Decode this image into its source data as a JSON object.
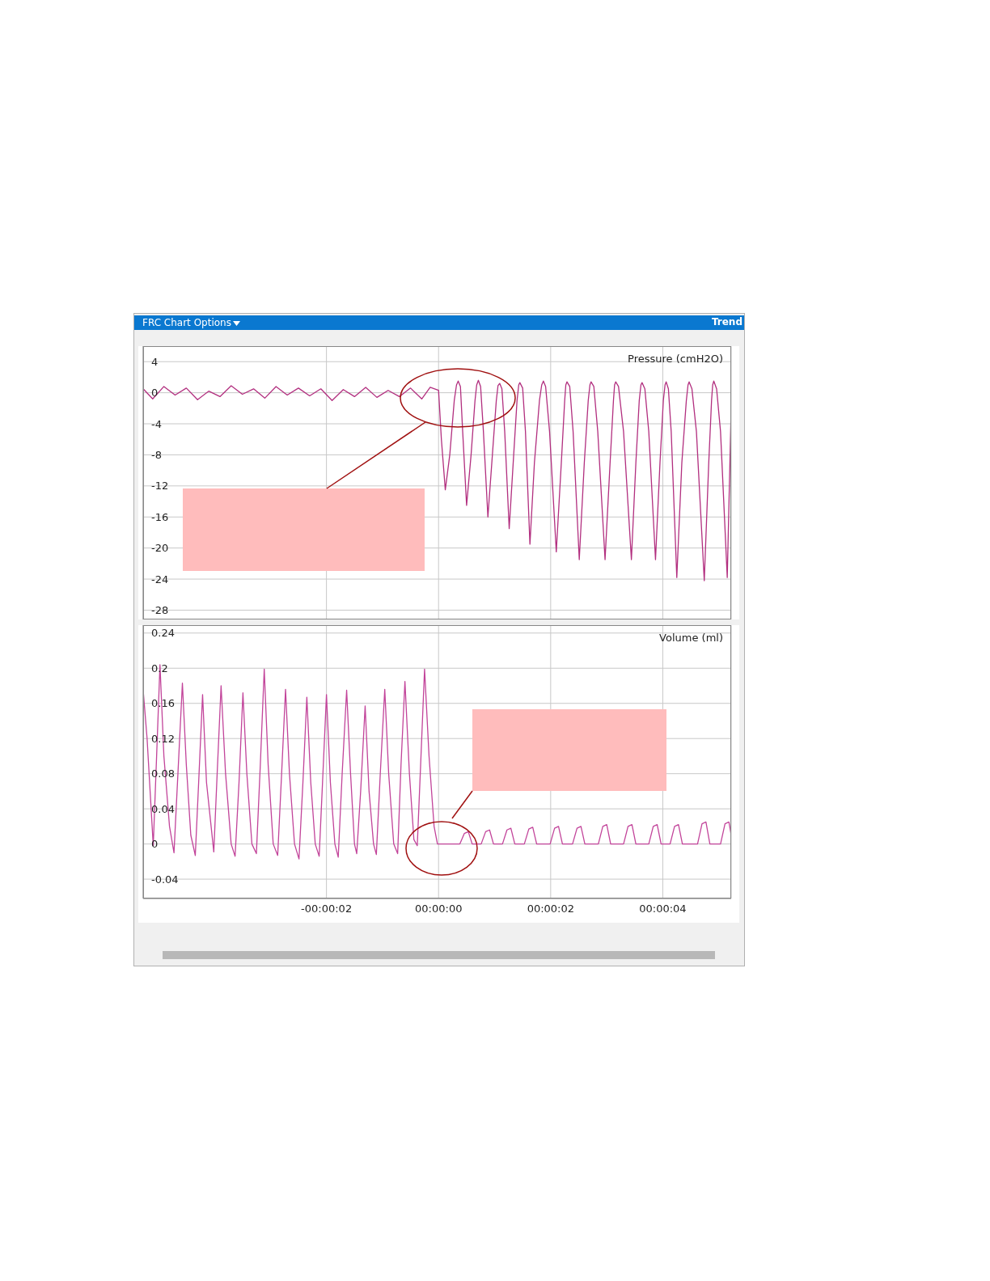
{
  "chart_data": [
    {
      "type": "line",
      "ylabel": "Pressure (cmH2O)",
      "annotations": [
        "FRC Chart Options",
        "Trend"
      ],
      "color": "#b22f7f",
      "grid": true,
      "tick_labels": "y",
      "xlim": [
        -5.27,
        5.22
      ],
      "xticks": [
        {
          "value": -2,
          "label": null
        },
        {
          "value": 0,
          "label": null
        },
        {
          "value": 2,
          "label": null
        },
        {
          "value": 4,
          "label": null
        }
      ],
      "ylim": [
        -29.2,
        6
      ],
      "yticks": [
        4,
        0,
        -4,
        -8,
        -12,
        -16,
        -20,
        -24,
        -28
      ],
      "x": [
        -5.27,
        -5.1,
        -4.9,
        -4.7,
        -4.5,
        -4.3,
        -4.1,
        -3.9,
        -3.7,
        -3.5,
        -3.3,
        -3.1,
        -2.9,
        -2.7,
        -2.5,
        -2.3,
        -2.1,
        -1.9,
        -1.7,
        -1.5,
        -1.3,
        -1.1,
        -0.9,
        -0.7,
        -0.5,
        -0.3,
        -0.15,
        0,
        0.05,
        0.12,
        0.2,
        0.28,
        0.32,
        0.35,
        0.39,
        0.43,
        0.5,
        0.58,
        0.65,
        0.68,
        0.71,
        0.75,
        0.8,
        0.88,
        0.96,
        1.03,
        1.06,
        1.09,
        1.13,
        1.18,
        1.26,
        1.34,
        1.4,
        1.43,
        1.45,
        1.5,
        1.55,
        1.63,
        1.71,
        1.8,
        1.84,
        1.87,
        1.91,
        1.98,
        2.1,
        2.19,
        2.25,
        2.27,
        2.29,
        2.34,
        2.4,
        2.51,
        2.6,
        2.67,
        2.7,
        2.72,
        2.77,
        2.84,
        2.97,
        3.06,
        3.12,
        3.14,
        3.16,
        3.21,
        3.3,
        3.44,
        3.52,
        3.58,
        3.61,
        3.63,
        3.68,
        3.75,
        3.87,
        3.95,
        4.01,
        4.04,
        4.06,
        4.1,
        4.15,
        4.25,
        4.34,
        4.42,
        4.45,
        4.47,
        4.52,
        4.6,
        4.74,
        4.82,
        4.87,
        4.89,
        4.91,
        4.96,
        5.03,
        5.15,
        5.22
      ],
      "values": [
        0.5,
        -0.8,
        0.8,
        -0.3,
        0.6,
        -0.9,
        0.2,
        -0.5,
        0.9,
        -0.2,
        0.5,
        -0.7,
        0.8,
        -0.3,
        0.6,
        -0.4,
        0.5,
        -1,
        0.4,
        -0.5,
        0.7,
        -0.6,
        0.3,
        -0.5,
        0.6,
        -0.8,
        0.7,
        0.3,
        -6,
        -12.5,
        -8,
        -1,
        1,
        1.5,
        0.8,
        -5,
        -14.5,
        -8,
        -1,
        1,
        1.6,
        0.8,
        -5,
        -16,
        -8,
        -1,
        0.9,
        1.2,
        0.5,
        -5,
        -17.5,
        -8,
        -1,
        1,
        1.3,
        0.6,
        -5,
        -19.5,
        -9,
        -1,
        1,
        1.5,
        0.8,
        -5,
        -20.5,
        -9,
        -1,
        1,
        1.4,
        0.8,
        -5,
        -21.5,
        -9,
        -1,
        1,
        1.4,
        0.8,
        -5,
        -21.5,
        -9,
        -1,
        1,
        1.4,
        0.8,
        -5,
        -21.5,
        -9,
        -1,
        1,
        1.3,
        0.5,
        -5,
        -21.5,
        -9,
        -1,
        1,
        1.4,
        0.5,
        -5,
        -23.8,
        -9,
        -1,
        1,
        1.4,
        0.5,
        -5,
        -24.2,
        -9,
        -1,
        1,
        1.5,
        0.5,
        -5,
        -23.8,
        -2
      ]
    },
    {
      "type": "line",
      "ylabel": "Volume (ml)",
      "color": "#c2449a",
      "grid": true,
      "xlim": [
        -5.27,
        5.22
      ],
      "xticks": [
        {
          "value": -2,
          "label": "-00:00:02"
        },
        {
          "value": 0,
          "label": "00:00:00"
        },
        {
          "value": 2,
          "label": "00:00:02"
        },
        {
          "value": 4,
          "label": "00:00:04"
        }
      ],
      "ylim": [
        -0.062,
        0.249
      ],
      "yticks": [
        0.24,
        0.2,
        0.16,
        0.12,
        0.08,
        0.04,
        0,
        -0.04
      ],
      "x": [
        -5.27,
        -5.2,
        -5.09,
        -5.03,
        -4.97,
        -4.9,
        -4.8,
        -4.72,
        -4.65,
        -4.57,
        -4.5,
        -4.42,
        -4.34,
        -4.28,
        -4.21,
        -4.14,
        -4.01,
        -3.95,
        -3.88,
        -3.8,
        -3.7,
        -3.63,
        -3.56,
        -3.49,
        -3.42,
        -3.33,
        -3.25,
        -3.18,
        -3.11,
        -3.04,
        -2.95,
        -2.87,
        -2.8,
        -2.73,
        -2.66,
        -2.57,
        -2.49,
        -2.42,
        -2.35,
        -2.28,
        -2.2,
        -2.13,
        -2.07,
        -2,
        -1.93,
        -1.85,
        -1.79,
        -1.72,
        -1.64,
        -1.57,
        -1.5,
        -1.46,
        -1.39,
        -1.31,
        -1.24,
        -1.16,
        -1.11,
        -1.04,
        -0.96,
        -0.89,
        -0.8,
        -0.73,
        -0.67,
        -0.6,
        -0.52,
        -0.44,
        -0.38,
        -0.32,
        -0.25,
        -0.17,
        -0.08,
        -0.02,
        0.38,
        0.46,
        0.53,
        0.6,
        0.76,
        0.84,
        0.91,
        0.98,
        1.14,
        1.22,
        1.29,
        1.36,
        1.53,
        1.61,
        1.68,
        1.75,
        1.99,
        2.07,
        2.14,
        2.21,
        2.39,
        2.47,
        2.54,
        2.61,
        2.85,
        2.93,
        3,
        3.07,
        3.3,
        3.38,
        3.45,
        3.52,
        3.75,
        3.83,
        3.9,
        3.97,
        4.13,
        4.21,
        4.28,
        4.35,
        4.62,
        4.7,
        4.77,
        4.84,
        5.03,
        5.11,
        5.18,
        5.22
      ],
      "values": [
        0.175,
        0.12,
        -0.002,
        0.1,
        0.204,
        0.1,
        0.02,
        -0.01,
        0.08,
        0.183,
        0.09,
        0.01,
        -0.013,
        0.07,
        0.17,
        0.07,
        -0.009,
        0.08,
        0.18,
        0.08,
        0,
        -0.014,
        0.07,
        0.172,
        0.08,
        0,
        -0.011,
        0.09,
        0.199,
        0.09,
        0,
        -0.013,
        0.08,
        0.176,
        0.08,
        0,
        -0.017,
        0.07,
        0.167,
        0.07,
        0,
        -0.014,
        0.07,
        0.17,
        0.07,
        0,
        -0.015,
        0.08,
        0.175,
        0.08,
        0,
        -0.011,
        0.06,
        0.157,
        0.06,
        0,
        -0.012,
        0.08,
        0.176,
        0.08,
        0,
        -0.011,
        0.09,
        0.185,
        0.08,
        0.005,
        -0.002,
        0.09,
        0.199,
        0.1,
        0.02,
        0,
        0,
        0.012,
        0.014,
        0,
        0,
        0.014,
        0.016,
        0,
        0,
        0.016,
        0.018,
        0,
        0,
        0.017,
        0.019,
        0,
        0,
        0.018,
        0.02,
        0,
        0,
        0.018,
        0.02,
        0,
        0,
        0.02,
        0.022,
        0,
        0,
        0.02,
        0.022,
        0,
        0,
        0.02,
        0.022,
        0,
        0,
        0.02,
        0.022,
        0,
        0,
        0.023,
        0.025,
        0,
        0,
        0.023,
        0.025,
        0.01
      ]
    }
  ]
}
